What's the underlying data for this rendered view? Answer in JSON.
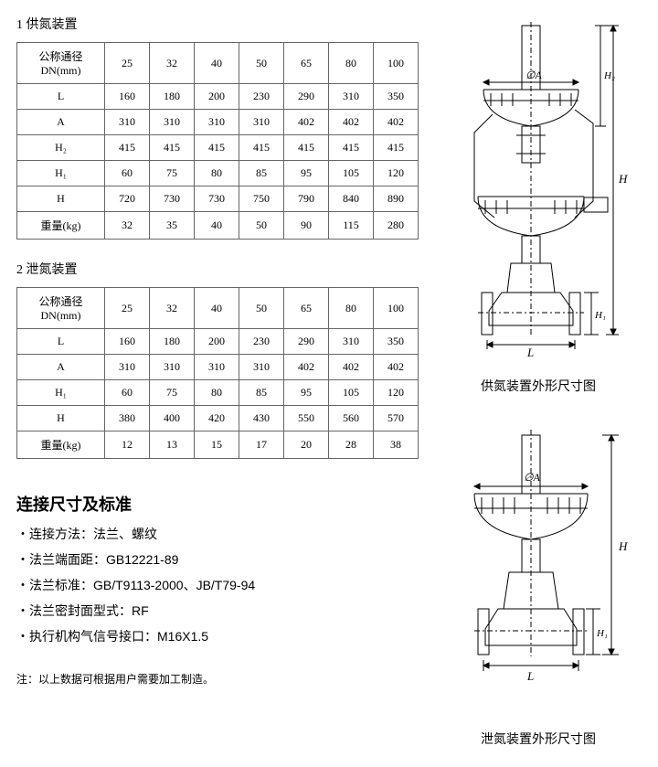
{
  "section1": {
    "title": "1 供氮装置",
    "table": {
      "header_label": "公称通径DN(mm)",
      "columns": [
        "25",
        "32",
        "40",
        "50",
        "65",
        "80",
        "100"
      ],
      "rows": [
        {
          "label": "L",
          "vals": [
            "160",
            "180",
            "200",
            "230",
            "290",
            "310",
            "350"
          ]
        },
        {
          "label": "A",
          "vals": [
            "310",
            "310",
            "310",
            "310",
            "402",
            "402",
            "402"
          ]
        },
        {
          "label": "H₂",
          "vals": [
            "415",
            "415",
            "415",
            "415",
            "415",
            "415",
            "415"
          ]
        },
        {
          "label": "H₁",
          "vals": [
            "60",
            "75",
            "80",
            "85",
            "95",
            "105",
            "120"
          ]
        },
        {
          "label": "H",
          "vals": [
            "720",
            "730",
            "730",
            "750",
            "790",
            "840",
            "890"
          ]
        },
        {
          "label": "重量(kg)",
          "vals": [
            "32",
            "35",
            "40",
            "50",
            "90",
            "115",
            "280"
          ]
        }
      ]
    }
  },
  "section2": {
    "title": "2 泄氮装置",
    "table": {
      "header_label": "公称通径\nDN(mm)",
      "columns": [
        "25",
        "32",
        "40",
        "50",
        "65",
        "80",
        "100"
      ],
      "rows": [
        {
          "label": "L",
          "vals": [
            "160",
            "180",
            "200",
            "230",
            "290",
            "310",
            "350"
          ]
        },
        {
          "label": "A",
          "vals": [
            "310",
            "310",
            "310",
            "310",
            "402",
            "402",
            "402"
          ]
        },
        {
          "label": "H₁",
          "vals": [
            "60",
            "75",
            "80",
            "85",
            "95",
            "105",
            "120"
          ]
        },
        {
          "label": "H",
          "vals": [
            "380",
            "400",
            "420",
            "430",
            "550",
            "560",
            "570"
          ]
        },
        {
          "label": "重量(kg)",
          "vals": [
            "12",
            "13",
            "15",
            "17",
            "20",
            "28",
            "38"
          ]
        }
      ]
    }
  },
  "standards": {
    "title": "连接尺寸及标准",
    "items": [
      "连接方法：法兰、螺纹",
      "法兰端面距：GB12221-89",
      "法兰标准：GB/T9113-2000、JB/T79-94",
      "法兰密封面型式：RF",
      "执行机构气信号接口：M16X1.5"
    ]
  },
  "footnote": "注：以上数据可根据用户需要加工制造。",
  "diagram1": {
    "caption": "供氮装置外形尺寸图",
    "labels": {
      "phiA": "∅A",
      "H": "H",
      "H1": "H₁",
      "H2": "H₂",
      "L": "L"
    },
    "stroke": "#000000"
  },
  "diagram2": {
    "caption": "泄氮装置外形尺寸图",
    "labels": {
      "phiA": "∅A",
      "H": "H",
      "H1": "H₁",
      "L": "L"
    },
    "stroke": "#000000"
  }
}
